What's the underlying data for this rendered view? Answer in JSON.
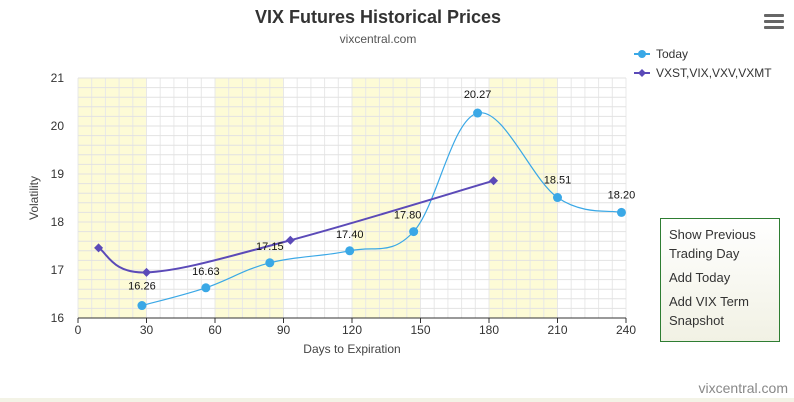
{
  "chart_data": {
    "type": "line",
    "title": "VIX Futures Historical Prices",
    "subtitle": "vixcentral.com",
    "xlabel": "Days to Expiration",
    "ylabel": "Volatility",
    "xlim": [
      0,
      240
    ],
    "ylim": [
      16,
      21
    ],
    "xticks": [
      0,
      30,
      60,
      90,
      120,
      150,
      180,
      210,
      240
    ],
    "yticks": [
      16,
      17,
      18,
      19,
      20,
      21
    ],
    "legend_position": "top-right",
    "grid": true,
    "bands": [
      [
        0,
        30
      ],
      [
        60,
        90
      ],
      [
        120,
        150
      ],
      [
        180,
        210
      ]
    ],
    "series": [
      {
        "name": "Today",
        "color": "#3aa8e6",
        "marker": "circle",
        "x": [
          28,
          56,
          84,
          119,
          147,
          175,
          210,
          238
        ],
        "y": [
          16.26,
          16.63,
          17.15,
          17.4,
          17.8,
          20.27,
          18.51,
          18.2
        ],
        "labels": [
          "16.26",
          "16.63",
          "17.15",
          "17.40",
          "17.80",
          "20.27",
          "18.51",
          "18.20"
        ]
      },
      {
        "name": "VXST,VIX,VXV,VXMT",
        "color": "#5b4ab8",
        "marker": "diamond",
        "x": [
          9,
          30,
          93,
          182
        ],
        "y": [
          17.46,
          16.95,
          17.62,
          18.86
        ],
        "labels": []
      }
    ]
  },
  "menu": {
    "icon": "hamburger-menu-icon"
  },
  "side_panel": {
    "items": [
      "Show Previous Trading Day",
      "Add Today",
      "Add VIX Term Snapshot"
    ]
  },
  "credit": "vixcentral.com"
}
